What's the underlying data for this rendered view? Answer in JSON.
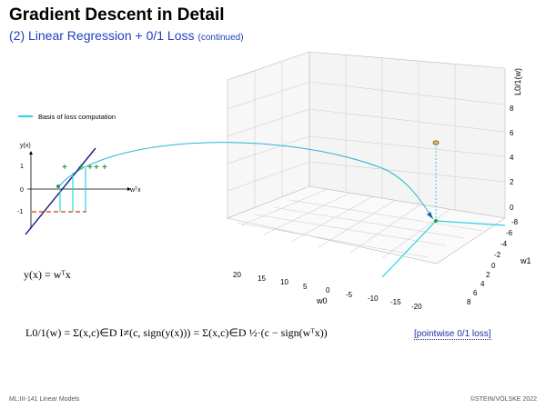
{
  "slide": {
    "title": "Gradient Descent in Detail",
    "subtitle": "(2) Linear Regression + 0/1 Loss",
    "subtitle_note": "(continued)"
  },
  "legend": {
    "label": "Basis of loss computation",
    "color": "#29d3e6"
  },
  "small_plot": {
    "y_axis_label": "y(x)",
    "x_axis_label": "wᵀx",
    "y_ticks": [
      "1",
      "0",
      "-1"
    ]
  },
  "plot3d": {
    "z_label": "L0/1(w)",
    "z_ticks": [
      "8",
      "6",
      "4",
      "2",
      "0"
    ],
    "w0_label": "w0",
    "w0_ticks": [
      "20",
      "15",
      "10",
      "5",
      "0",
      "-5",
      "-10",
      "-15",
      "-20"
    ],
    "w1_label": "w1",
    "w1_ticks": [
      "-8",
      "-6",
      "-4",
      "-2",
      "0",
      "2",
      "4",
      "6",
      "8"
    ]
  },
  "formulas": {
    "model": "y(x) = wᵀx",
    "loss": "L0/1(w) = Σ(x,c)∈D I≠(c, sign(y(x))) = Σ(x,c)∈D ½·(c − sign(wᵀx))",
    "loss_tag": "[pointwise 0/1 loss]"
  },
  "footer": {
    "left": "ML:III-141    Linear Models",
    "right": "©STEIN/VÖLSKE 2022"
  }
}
